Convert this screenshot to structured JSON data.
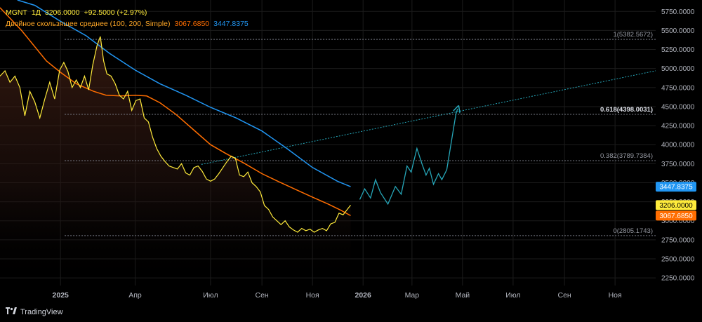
{
  "legend": {
    "symbol": "MGNT",
    "interval": "1Д",
    "last": "3206.0000",
    "change": "+92.5000 (+2.97%)",
    "ma_name": "Двойное скользящее среднее (100, 200, Simple)",
    "ma100": "3067.6850",
    "ma200": "3447.8375"
  },
  "brand": {
    "name": "TradingView",
    "logo": "tradingview-logo-icon"
  },
  "colors": {
    "price": "#ffeb3b",
    "ma100": "#ff6d00",
    "ma200": "#2196f3",
    "projection": "#26a6b8",
    "fib": "#787b86",
    "grid": "#1c1c1c"
  },
  "price_labels": [
    {
      "text": "3447.8375",
      "bg": "#2196f3",
      "fg": "#ffffff",
      "value": 3447.8375
    },
    {
      "text": "3206.0000",
      "bg": "#ffeb3b",
      "fg": "#000000",
      "value": 3206.0
    },
    {
      "text": "3067.6850",
      "bg": "#ff6d00",
      "fg": "#ffffff",
      "value": 3067.685
    }
  ],
  "chart_data": {
    "type": "line",
    "y_ticks": [
      "5750.0000",
      "5500.0000",
      "5250.0000",
      "5000.0000",
      "4750.0000",
      "4500.0000",
      "4250.0000",
      "4000.0000",
      "3750.0000",
      "3500.0000",
      "3250.0000",
      "3000.0000",
      "2750.0000",
      "2500.0000",
      "2250.0000"
    ],
    "y_tick_values": [
      5750,
      5500,
      5250,
      5000,
      4750,
      4500,
      4250,
      4000,
      3750,
      3500,
      3250,
      3000,
      2750,
      2500,
      2250
    ],
    "ylim": [
      2150,
      5900
    ],
    "x_labels": [
      "2025",
      "Апр",
      "Июл",
      "Сен",
      "Ноя",
      "2026",
      "Мар",
      "Май",
      "Июл",
      "Сен",
      "Ноя"
    ],
    "x_label_dates": [
      "2025-01-01",
      "2025-04-01",
      "2025-07-01",
      "2025-09-01",
      "2025-11-01",
      "2026-01-01",
      "2026-03-01",
      "2026-05-01",
      "2026-07-01",
      "2026-09-01",
      "2026-11-01"
    ],
    "x_label_bold": [
      true,
      false,
      false,
      false,
      false,
      true,
      false,
      false,
      false,
      false,
      false
    ],
    "xlim": [
      "2024-10-20",
      "2026-12-20"
    ],
    "fib_levels": [
      {
        "text": "1(5382.5672)",
        "value": 5382.5672,
        "bold": false
      },
      {
        "text": "0.618(4398.0031)",
        "value": 4398.0031,
        "bold": true
      },
      {
        "text": "0.382(3789.7384)",
        "value": 3789.7384,
        "bold": false
      },
      {
        "text": "0(2805.1743)",
        "value": 2805.1743,
        "bold": false
      }
    ],
    "fib_start": "2025-01-06",
    "series": [
      {
        "key": "price",
        "x": [
          "2024-10-20",
          "2024-10-26",
          "2024-11-01",
          "2024-11-07",
          "2024-11-13",
          "2024-11-19",
          "2024-11-25",
          "2024-12-01",
          "2024-12-07",
          "2024-12-13",
          "2024-12-19",
          "2024-12-25",
          "2024-12-31",
          "2025-01-05",
          "2025-01-10",
          "2025-01-15",
          "2025-01-20",
          "2025-01-25",
          "2025-01-30",
          "2025-02-04",
          "2025-02-09",
          "2025-02-14",
          "2025-02-18",
          "2025-02-22",
          "2025-02-26",
          "2025-03-03",
          "2025-03-08",
          "2025-03-13",
          "2025-03-18",
          "2025-03-23",
          "2025-03-28",
          "2025-04-02",
          "2025-04-07",
          "2025-04-12",
          "2025-04-17",
          "2025-04-22",
          "2025-04-27",
          "2025-05-02",
          "2025-05-07",
          "2025-05-12",
          "2025-05-17",
          "2025-05-22",
          "2025-05-27",
          "2025-06-01",
          "2025-06-06",
          "2025-06-11",
          "2025-06-16",
          "2025-06-21",
          "2025-06-26",
          "2025-07-01",
          "2025-07-06",
          "2025-07-11",
          "2025-07-16",
          "2025-07-21",
          "2025-07-26",
          "2025-07-31",
          "2025-08-05",
          "2025-08-10",
          "2025-08-15",
          "2025-08-20",
          "2025-08-25",
          "2025-08-30",
          "2025-09-04",
          "2025-09-09",
          "2025-09-14",
          "2025-09-19",
          "2025-09-24",
          "2025-09-29",
          "2025-10-04",
          "2025-10-09",
          "2025-10-14",
          "2025-10-19",
          "2025-10-24",
          "2025-10-29",
          "2025-11-03",
          "2025-11-08",
          "2025-11-13",
          "2025-11-18",
          "2025-11-23",
          "2025-11-28",
          "2025-12-03",
          "2025-12-08",
          "2025-12-13",
          "2025-12-17"
        ],
        "values": [
          4900,
          4970,
          4820,
          4900,
          4750,
          4380,
          4700,
          4560,
          4350,
          4600,
          4820,
          4600,
          4980,
          5080,
          4960,
          4750,
          4850,
          4750,
          4900,
          4720,
          5050,
          5300,
          5420,
          5100,
          4930,
          4900,
          4800,
          4650,
          4600,
          4700,
          4450,
          4580,
          4600,
          4350,
          4300,
          4100,
          3950,
          3850,
          3780,
          3720,
          3700,
          3680,
          3750,
          3630,
          3600,
          3700,
          3720,
          3650,
          3550,
          3520,
          3550,
          3620,
          3700,
          3780,
          3850,
          3820,
          3600,
          3580,
          3640,
          3500,
          3450,
          3380,
          3200,
          3150,
          3050,
          3000,
          2950,
          3000,
          2920,
          2880,
          2850,
          2900,
          2870,
          2890,
          2850,
          2880,
          2900,
          2870,
          2960,
          2980,
          3100,
          3080,
          3150,
          3206
        ]
      },
      {
        "key": "ma100",
        "x": [
          "2024-10-20",
          "2024-11-15",
          "2024-12-15",
          "2025-01-01",
          "2025-01-20",
          "2025-02-10",
          "2025-02-25",
          "2025-03-15",
          "2025-04-01",
          "2025-04-15",
          "2025-05-01",
          "2025-05-20",
          "2025-06-10",
          "2025-07-01",
          "2025-07-20",
          "2025-08-10",
          "2025-09-01",
          "2025-09-20",
          "2025-10-10",
          "2025-11-01",
          "2025-11-20",
          "2025-12-05",
          "2025-12-17"
        ],
        "values": [
          5800,
          5500,
          5100,
          4950,
          4800,
          4700,
          4650,
          4640,
          4650,
          4640,
          4550,
          4400,
          4200,
          4000,
          3880,
          3760,
          3620,
          3520,
          3420,
          3310,
          3220,
          3140,
          3067.685
        ]
      },
      {
        "key": "ma200",
        "x": [
          "2024-11-10",
          "2024-12-01",
          "2025-01-01",
          "2025-02-01",
          "2025-03-01",
          "2025-04-01",
          "2025-05-01",
          "2025-06-01",
          "2025-07-01",
          "2025-08-01",
          "2025-09-01",
          "2025-10-01",
          "2025-11-01",
          "2025-12-01",
          "2025-12-17"
        ],
        "values": [
          5900,
          5830,
          5620,
          5430,
          5200,
          4980,
          4800,
          4650,
          4490,
          4350,
          4180,
          3950,
          3700,
          3520,
          3447.8375
        ]
      },
      {
        "key": "projection",
        "x": [
          "2025-12-28",
          "2026-01-03",
          "2026-01-10",
          "2026-01-16",
          "2026-01-22",
          "2026-01-31",
          "2026-02-09",
          "2026-02-16",
          "2026-02-23",
          "2026-02-28",
          "2026-03-07",
          "2026-03-13",
          "2026-03-18",
          "2026-03-22",
          "2026-03-27",
          "2026-04-02",
          "2026-04-06",
          "2026-04-12",
          "2026-04-23",
          "2026-04-25"
        ],
        "values": [
          3280,
          3420,
          3300,
          3540,
          3370,
          3220,
          3450,
          3350,
          3720,
          3640,
          3950,
          3750,
          3600,
          3690,
          3480,
          3620,
          3540,
          3670,
          4400,
          4470
        ]
      },
      {
        "key": "trend",
        "x": [
          "2025-06-20",
          "2026-12-20"
        ],
        "values": [
          3740,
          4970
        ]
      }
    ]
  }
}
